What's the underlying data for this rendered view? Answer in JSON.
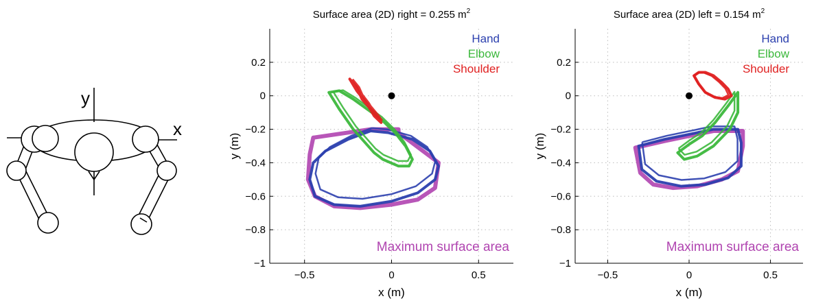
{
  "diagram": {
    "axis_x": "x",
    "axis_y": "y"
  },
  "chart_data": [
    {
      "type": "line",
      "title": "Surface area (2D) right = 0.255 m",
      "title_sup": "2",
      "xlabel": "x (m)",
      "ylabel": "y (m)",
      "xlim": [
        -0.7,
        0.7
      ],
      "ylim": [
        -1.0,
        0.4
      ],
      "xticks": [
        -0.5,
        0,
        0.5
      ],
      "yticks": [
        -1,
        -0.8,
        -0.6,
        -0.4,
        -0.2,
        0,
        0.2
      ],
      "xtick_labels": [
        "−0.5",
        "0",
        "0.5"
      ],
      "ytick_labels": [
        "−1",
        "−0.8",
        "−0.6",
        "−0.4",
        "−0.2",
        "0",
        "0.2"
      ],
      "grid": true,
      "legend_position": "top-right",
      "annotation": "Maximum surface area",
      "origin_marker": [
        0,
        0
      ],
      "series": [
        {
          "name": "Hand",
          "color": "#2b3fae",
          "x": [
            -0.12,
            -0.02,
            0.12,
            0.22,
            0.27,
            0.25,
            0.15,
            0.0,
            -0.18,
            -0.33,
            -0.44,
            -0.47,
            -0.45,
            -0.38,
            -0.25,
            -0.12
          ],
          "y": [
            -0.21,
            -0.22,
            -0.26,
            -0.33,
            -0.42,
            -0.5,
            -0.58,
            -0.63,
            -0.66,
            -0.65,
            -0.6,
            -0.5,
            -0.4,
            -0.33,
            -0.26,
            -0.21
          ]
        },
        {
          "name": "Elbow",
          "color": "#3cb83c",
          "x": [
            -0.36,
            -0.3,
            -0.22,
            -0.14,
            -0.06,
            0.02,
            0.08,
            0.12,
            0.1,
            0.04,
            -0.05,
            -0.1,
            -0.16,
            -0.22,
            -0.3,
            -0.36
          ],
          "y": [
            0.02,
            0.03,
            -0.02,
            -0.08,
            -0.14,
            -0.22,
            -0.3,
            -0.38,
            -0.42,
            -0.42,
            -0.38,
            -0.34,
            -0.27,
            -0.2,
            -0.08,
            0.02
          ]
        },
        {
          "name": "Shoulder",
          "color": "#e02020",
          "x": [
            -0.24,
            -0.2,
            -0.17,
            -0.12,
            -0.08,
            -0.06,
            -0.1,
            -0.14,
            -0.2,
            -0.24
          ],
          "y": [
            0.1,
            0.05,
            -0.02,
            -0.08,
            -0.13,
            -0.16,
            -0.12,
            -0.05,
            0.03,
            0.1
          ]
        },
        {
          "name": "Maximum surface area",
          "color": "#b044b0",
          "x": [
            -0.45,
            -0.12,
            0.04,
            0.04,
            0.27,
            0.25,
            0.15,
            0.0,
            -0.18,
            -0.33,
            -0.44,
            -0.48,
            -0.47,
            -0.45
          ],
          "y": [
            -0.25,
            -0.2,
            -0.2,
            -0.22,
            -0.4,
            -0.55,
            -0.62,
            -0.65,
            -0.67,
            -0.66,
            -0.6,
            -0.5,
            -0.35,
            -0.25
          ]
        }
      ]
    },
    {
      "type": "line",
      "title": "Surface area (2D) left = 0.154 m",
      "title_sup": "2",
      "xlabel": "x (m)",
      "ylabel": "y (m)",
      "xlim": [
        -0.7,
        0.7
      ],
      "ylim": [
        -1.0,
        0.4
      ],
      "xticks": [
        -0.5,
        0,
        0.5
      ],
      "yticks": [
        -1,
        -0.8,
        -0.6,
        -0.4,
        -0.2,
        0,
        0.2
      ],
      "xtick_labels": [
        "−0.5",
        "0",
        "0.5"
      ],
      "ytick_labels": [
        "−1",
        "−0.8",
        "−0.6",
        "−0.4",
        "−0.2",
        "0",
        "0.2"
      ],
      "grid": true,
      "legend_position": "top-right",
      "annotation": "Maximum surface area",
      "origin_marker": [
        0,
        0
      ],
      "series": [
        {
          "name": "Hand",
          "color": "#2b3fae",
          "x": [
            -0.31,
            -0.15,
            0.0,
            0.15,
            0.3,
            0.32,
            0.32,
            0.24,
            0.1,
            -0.05,
            -0.2,
            -0.29,
            -0.31
          ],
          "y": [
            -0.3,
            -0.26,
            -0.23,
            -0.2,
            -0.2,
            -0.28,
            -0.42,
            -0.49,
            -0.53,
            -0.54,
            -0.51,
            -0.44,
            -0.3
          ]
        },
        {
          "name": "Elbow",
          "color": "#3cb83c",
          "x": [
            -0.07,
            0.0,
            0.08,
            0.16,
            0.24,
            0.3,
            0.3,
            0.25,
            0.15,
            0.05,
            -0.03,
            -0.07
          ],
          "y": [
            -0.34,
            -0.29,
            -0.24,
            -0.16,
            -0.06,
            0.02,
            -0.1,
            -0.2,
            -0.3,
            -0.36,
            -0.38,
            -0.34
          ]
        },
        {
          "name": "Shoulder",
          "color": "#e02020",
          "x": [
            0.03,
            0.06,
            0.1,
            0.15,
            0.2,
            0.24,
            0.26,
            0.22,
            0.16,
            0.1,
            0.06,
            0.03
          ],
          "y": [
            0.12,
            0.14,
            0.14,
            0.12,
            0.08,
            0.04,
            0.0,
            -0.02,
            -0.01,
            0.02,
            0.07,
            0.12
          ]
        },
        {
          "name": "Maximum surface area",
          "color": "#b044b0",
          "x": [
            -0.33,
            -0.15,
            0.0,
            0.15,
            0.33,
            0.33,
            0.3,
            0.2,
            0.05,
            -0.1,
            -0.22,
            -0.3,
            -0.33
          ],
          "y": [
            -0.31,
            -0.27,
            -0.24,
            -0.21,
            -0.21,
            -0.3,
            -0.45,
            -0.5,
            -0.54,
            -0.55,
            -0.53,
            -0.46,
            -0.31
          ]
        }
      ]
    }
  ]
}
